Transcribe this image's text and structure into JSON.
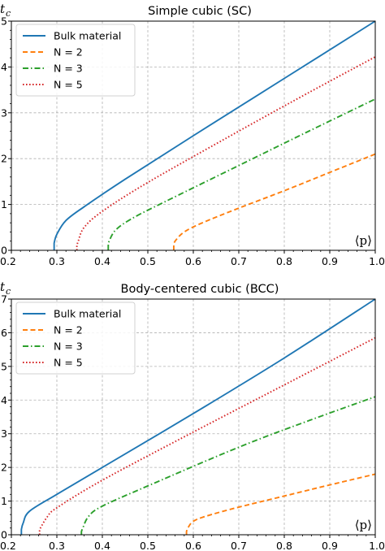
{
  "chart_data": [
    {
      "type": "line",
      "title": "Simple cubic (SC)",
      "ylabel_symbol": "t",
      "ylabel_subscript": "c",
      "xlabel": "⟨p⟩",
      "xlim": [
        0.2,
        1.0
      ],
      "ylim": [
        0,
        5
      ],
      "xticks": [
        0.2,
        0.3,
        0.4,
        0.5,
        0.6,
        0.7,
        0.8,
        0.9,
        1.0
      ],
      "xtick_labels": [
        "0.2",
        "0.3",
        "0.4",
        "0.5",
        "0.6",
        "0.7",
        "0.8",
        "0.9",
        "1.0"
      ],
      "yticks": [
        0,
        1,
        2,
        3,
        4,
        5
      ],
      "ytick_labels": [
        "0",
        "1",
        "2",
        "3",
        "4",
        "5"
      ],
      "grid": true,
      "legend_position": "top-left",
      "series": [
        {
          "name": "Bulk material",
          "color": "#1f77b4",
          "style": "solid",
          "pc": 0.294,
          "x": [
            0.3,
            0.32,
            0.36,
            0.45,
            0.6,
            0.8,
            1.0
          ],
          "y": [
            0.35,
            0.65,
            0.95,
            1.55,
            2.5,
            3.75,
            5.0
          ]
        },
        {
          "name": "N = 2",
          "color": "#ff7f0e",
          "style": "dashed",
          "pc": 0.557,
          "x": [
            0.56,
            0.58,
            0.62,
            0.7,
            0.8,
            0.9,
            1.0
          ],
          "y": [
            0.2,
            0.4,
            0.6,
            0.92,
            1.3,
            1.7,
            2.1
          ]
        },
        {
          "name": "N = 3",
          "color": "#2ca02c",
          "style": "dashdot",
          "pc": 0.413,
          "x": [
            0.415,
            0.43,
            0.47,
            0.55,
            0.7,
            0.85,
            1.0
          ],
          "y": [
            0.2,
            0.45,
            0.72,
            1.12,
            1.85,
            2.58,
            3.3
          ]
        },
        {
          "name": "N = 5",
          "color": "#d62728",
          "style": "dotted",
          "pc": 0.344,
          "x": [
            0.347,
            0.36,
            0.4,
            0.5,
            0.7,
            0.85,
            1.0
          ],
          "y": [
            0.2,
            0.5,
            0.85,
            1.48,
            2.6,
            3.42,
            4.22
          ]
        }
      ]
    },
    {
      "type": "line",
      "title": "Body-centered cubic (BCC)",
      "ylabel_symbol": "t",
      "ylabel_subscript": "c",
      "xlabel": "⟨p⟩",
      "xlim": [
        0.2,
        1.0
      ],
      "ylim": [
        0,
        7
      ],
      "xticks": [
        0.2,
        0.3,
        0.4,
        0.5,
        0.6,
        0.7,
        0.8,
        0.9,
        1.0
      ],
      "xtick_labels": [
        "0.2",
        "0.3",
        "0.4",
        "0.5",
        "0.6",
        "0.7",
        "0.8",
        "0.9",
        "1.0"
      ],
      "yticks": [
        0,
        1,
        2,
        3,
        4,
        5,
        6,
        7
      ],
      "ytick_labels": [
        "0",
        "1",
        "2",
        "3",
        "4",
        "5",
        "6",
        "7"
      ],
      "grid": true,
      "legend_position": "top-left",
      "series": [
        {
          "name": "Bulk material",
          "color": "#1f77b4",
          "style": "solid",
          "pc": 0.222,
          "x": [
            0.226,
            0.24,
            0.3,
            0.4,
            0.6,
            0.8,
            1.0
          ],
          "y": [
            0.35,
            0.7,
            1.2,
            2.0,
            3.6,
            5.25,
            7.0
          ]
        },
        {
          "name": "N = 2",
          "color": "#ff7f0e",
          "style": "dashed",
          "pc": 0.585,
          "x": [
            0.588,
            0.6,
            0.63,
            0.7,
            0.8,
            0.9,
            1.0
          ],
          "y": [
            0.2,
            0.4,
            0.56,
            0.82,
            1.15,
            1.48,
            1.8
          ]
        },
        {
          "name": "N = 3",
          "color": "#2ca02c",
          "style": "dashdot",
          "pc": 0.354,
          "x": [
            0.357,
            0.37,
            0.4,
            0.5,
            0.7,
            0.85,
            1.0
          ],
          "y": [
            0.2,
            0.55,
            0.85,
            1.45,
            2.6,
            3.37,
            4.1
          ]
        },
        {
          "name": "N = 5",
          "color": "#d62728",
          "style": "dotted",
          "pc": 0.262,
          "x": [
            0.264,
            0.28,
            0.3,
            0.4,
            0.6,
            0.8,
            1.0
          ],
          "y": [
            0.2,
            0.55,
            0.8,
            1.62,
            3.05,
            4.45,
            5.85
          ]
        }
      ]
    }
  ]
}
